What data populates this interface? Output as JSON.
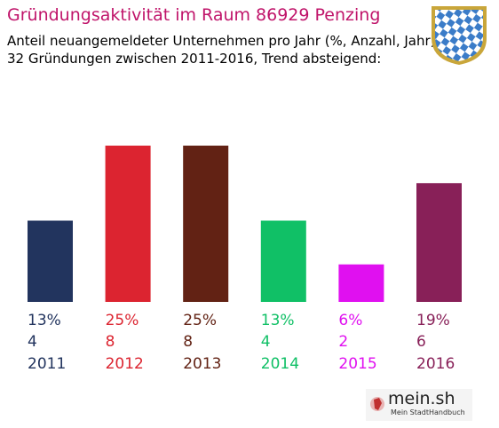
{
  "header": {
    "title": "Gründungsaktivität im Raum 86929 Penzing",
    "subtitle_line1": "Anteil neuangemeldeter Unternehmen pro Jahr (%, Anzahl, Jahr)",
    "subtitle_line2": "32 Gründungen zwischen 2011-2016, Trend absteigend:"
  },
  "branding": {
    "logo_text": "mein.sh",
    "logo_subtitle": "Mein StadtHandbuch",
    "crest_icon": "bavarian-coat-of-arms-icon"
  },
  "chart_data": {
    "type": "bar",
    "categories": [
      "2011",
      "2012",
      "2013",
      "2014",
      "2015",
      "2016"
    ],
    "values": [
      13,
      25,
      25,
      13,
      6,
      19
    ],
    "counts": [
      4,
      8,
      8,
      4,
      2,
      6
    ],
    "percent_labels": [
      "13%",
      "25%",
      "25%",
      "13%",
      "6%",
      "19%"
    ],
    "colors": [
      "#22345e",
      "#dc2430",
      "#622214",
      "#10c066",
      "#e010f0",
      "#882058"
    ],
    "ylim": [
      0,
      25
    ],
    "grid": false,
    "legend": "none"
  }
}
